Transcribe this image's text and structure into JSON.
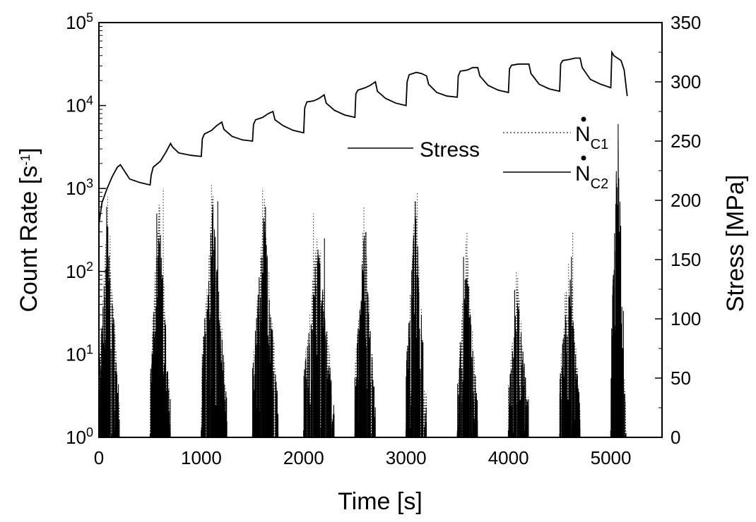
{
  "chart_data": {
    "type": "line",
    "xlabel": "Time [s]",
    "ylabel_left": "Count Rate [s⁻¹]",
    "ylabel_left_base": "Count Rate [s",
    "ylabel_left_exp": "-1",
    "ylabel_left_close": "]",
    "ylabel_right": "Stress [MPa]",
    "xlim": [
      0,
      5500
    ],
    "xticks": [
      "0",
      "1000",
      "2000",
      "3000",
      "4000",
      "5000"
    ],
    "xtick_values": [
      0,
      1000,
      2000,
      3000,
      4000,
      5000
    ],
    "y_left_scale": "log",
    "y_left_lim": [
      1,
      100000
    ],
    "y_left_ticks": [
      {
        "base": "10",
        "exp": "0",
        "value": 1
      },
      {
        "base": "10",
        "exp": "1",
        "value": 10
      },
      {
        "base": "10",
        "exp": "2",
        "value": 100
      },
      {
        "base": "10",
        "exp": "3",
        "value": 1000
      },
      {
        "base": "10",
        "exp": "4",
        "value": 10000
      },
      {
        "base": "10",
        "exp": "5",
        "value": 100000
      }
    ],
    "y_right_lim": [
      0,
      350
    ],
    "y_right_ticks": [
      "0",
      "50",
      "100",
      "150",
      "200",
      "250",
      "300",
      "350"
    ],
    "y_right_tick_values": [
      0,
      50,
      100,
      150,
      200,
      250,
      300,
      350
    ],
    "legend": {
      "placement": "top-right",
      "entries": [
        {
          "label": "Stress",
          "style": "solid",
          "axis": "right"
        },
        {
          "label_base": "N",
          "label_sub": "C1",
          "dotted_symbol": true,
          "style": "dotted",
          "axis": "left"
        },
        {
          "label_base": "N",
          "label_sub": "C2",
          "dotted_symbol": true,
          "style": "solid",
          "axis": "left"
        }
      ]
    },
    "stress_series": {
      "name": "Stress",
      "axis": "right",
      "x": [
        0,
        30,
        80,
        130,
        180,
        210,
        300,
        400,
        500,
        510,
        530,
        600,
        650,
        700,
        720,
        780,
        900,
        1000,
        1010,
        1030,
        1100,
        1150,
        1200,
        1220,
        1300,
        1400,
        1500,
        1510,
        1530,
        1600,
        1650,
        1700,
        1720,
        1800,
        1900,
        2000,
        2010,
        2030,
        2100,
        2150,
        2200,
        2220,
        2300,
        2400,
        2500,
        2510,
        2530,
        2600,
        2650,
        2700,
        2720,
        2800,
        2900,
        3000,
        3010,
        3030,
        3100,
        3150,
        3200,
        3220,
        3300,
        3400,
        3500,
        3510,
        3530,
        3600,
        3650,
        3700,
        3720,
        3800,
        3900,
        4000,
        4010,
        4030,
        4100,
        4150,
        4200,
        4220,
        4300,
        4400,
        4500,
        4510,
        4530,
        4600,
        4650,
        4700,
        4720,
        4800,
        4900,
        5000,
        5010,
        5030,
        5100,
        5130,
        5160
      ],
      "y": [
        180,
        198,
        210,
        220,
        228,
        230,
        218,
        215,
        213,
        221,
        228,
        233,
        240,
        248,
        245,
        240,
        238,
        237,
        252,
        256,
        259,
        263,
        266,
        260,
        254,
        251,
        250,
        264,
        268,
        270,
        273,
        275,
        268,
        263,
        259,
        257,
        278,
        283,
        284,
        286,
        289,
        282,
        276,
        272,
        270,
        290,
        293,
        295,
        297,
        300,
        292,
        286,
        282,
        280,
        300,
        306,
        308,
        307,
        305,
        298,
        291,
        288,
        287,
        305,
        309,
        310,
        312,
        312,
        305,
        297,
        293,
        291,
        311,
        314,
        315,
        315,
        315,
        307,
        298,
        294,
        292,
        315,
        318,
        319,
        320,
        320,
        312,
        302,
        298,
        295,
        325,
        322,
        318,
        310,
        288
      ]
    },
    "count_rate_series": [
      {
        "name_base": "N",
        "name_sub": "C1",
        "axis": "left",
        "style": "dotted",
        "bursts": [
          {
            "x_start": 0,
            "x_end": 200,
            "peak": 800
          },
          {
            "x_start": 500,
            "x_end": 700,
            "peak": 1000
          },
          {
            "x_start": 1000,
            "x_end": 1250,
            "peak": 1100
          },
          {
            "x_start": 1500,
            "x_end": 1750,
            "peak": 1000
          },
          {
            "x_start": 2000,
            "x_end": 2300,
            "peak": 500
          },
          {
            "x_start": 2500,
            "x_end": 2700,
            "peak": 600
          },
          {
            "x_start": 3000,
            "x_end": 3200,
            "peak": 900
          },
          {
            "x_start": 3500,
            "x_end": 3700,
            "peak": 300
          },
          {
            "x_start": 4000,
            "x_end": 4200,
            "peak": 100
          },
          {
            "x_start": 4500,
            "x_end": 4700,
            "peak": 300
          },
          {
            "x_start": 5000,
            "x_end": 5150,
            "peak": 100
          }
        ]
      },
      {
        "name_base": "N",
        "name_sub": "C2",
        "axis": "left",
        "style": "solid",
        "bursts": [
          {
            "x_start": 0,
            "x_end": 200,
            "peak": 600
          },
          {
            "x_start": 500,
            "x_end": 700,
            "peak": 500
          },
          {
            "x_start": 1000,
            "x_end": 1250,
            "peak": 700
          },
          {
            "x_start": 1500,
            "x_end": 1750,
            "peak": 600
          },
          {
            "x_start": 2000,
            "x_end": 2300,
            "peak": 250
          },
          {
            "x_start": 2500,
            "x_end": 2700,
            "peak": 300
          },
          {
            "x_start": 3000,
            "x_end": 3200,
            "peak": 700
          },
          {
            "x_start": 3500,
            "x_end": 3700,
            "peak": 150
          },
          {
            "x_start": 4000,
            "x_end": 4200,
            "peak": 60
          },
          {
            "x_start": 4500,
            "x_end": 4700,
            "peak": 150
          },
          {
            "x_start": 5000,
            "x_end": 5150,
            "peak": 6000
          }
        ]
      }
    ]
  }
}
